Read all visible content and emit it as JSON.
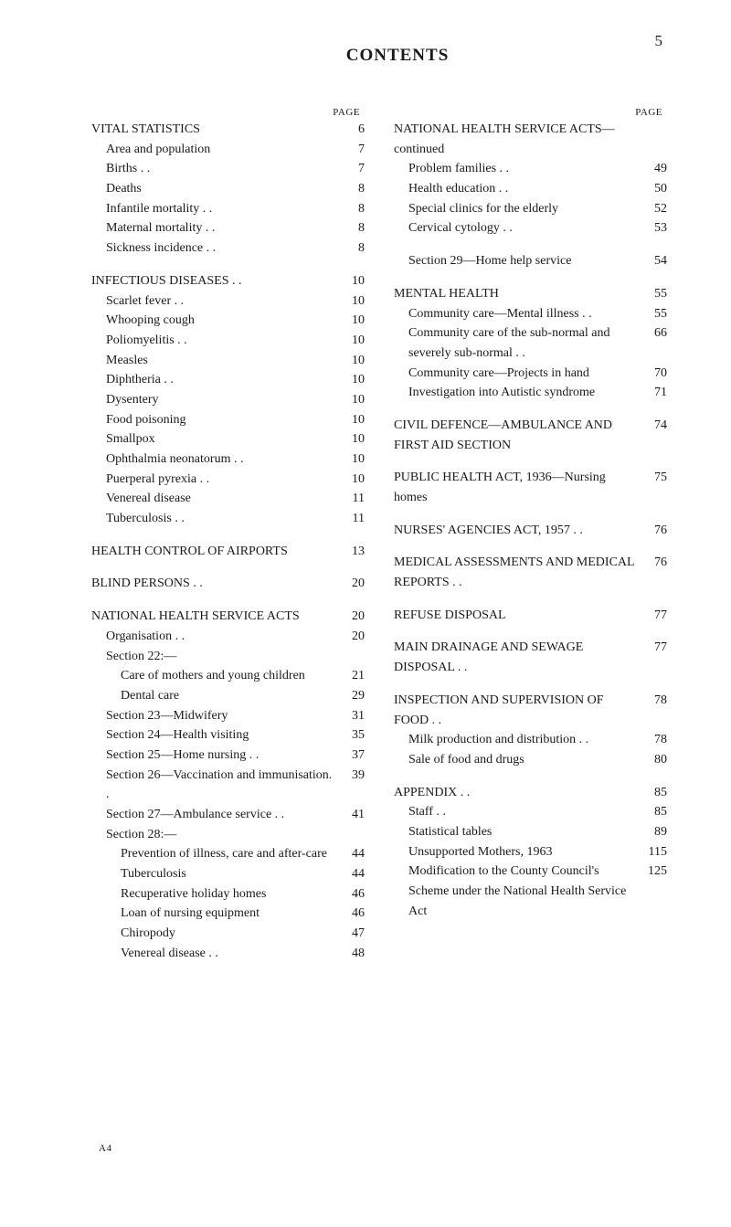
{
  "page_number": "5",
  "title": "CONTENTS",
  "page_header_label": "PAGE",
  "signature": "A4",
  "left_column": [
    {
      "type": "entry",
      "level": 0,
      "label": "VITAL STATISTICS",
      "page": "6"
    },
    {
      "type": "entry",
      "level": 1,
      "label": "Area and population",
      "page": "7"
    },
    {
      "type": "entry",
      "level": 1,
      "label": "Births . .",
      "page": "7"
    },
    {
      "type": "entry",
      "level": 1,
      "label": "Deaths",
      "page": "8"
    },
    {
      "type": "entry",
      "level": 1,
      "label": "Infantile mortality . .",
      "page": "8"
    },
    {
      "type": "entry",
      "level": 1,
      "label": "Maternal mortality . .",
      "page": "8"
    },
    {
      "type": "entry",
      "level": 1,
      "label": "Sickness incidence . .",
      "page": "8"
    },
    {
      "type": "gap"
    },
    {
      "type": "entry",
      "level": 0,
      "label": "INFECTIOUS DISEASES . .",
      "page": "10"
    },
    {
      "type": "entry",
      "level": 1,
      "label": "Scarlet fever . .",
      "page": "10"
    },
    {
      "type": "entry",
      "level": 1,
      "label": "Whooping cough",
      "page": "10"
    },
    {
      "type": "entry",
      "level": 1,
      "label": "Poliomyelitis . .",
      "page": "10"
    },
    {
      "type": "entry",
      "level": 1,
      "label": "Measles",
      "page": "10"
    },
    {
      "type": "entry",
      "level": 1,
      "label": "Diphtheria . .",
      "page": "10"
    },
    {
      "type": "entry",
      "level": 1,
      "label": "Dysentery",
      "page": "10"
    },
    {
      "type": "entry",
      "level": 1,
      "label": "Food poisoning",
      "page": "10"
    },
    {
      "type": "entry",
      "level": 1,
      "label": "Smallpox",
      "page": "10"
    },
    {
      "type": "entry",
      "level": 1,
      "label": "Ophthalmia neonatorum . .",
      "page": "10"
    },
    {
      "type": "entry",
      "level": 1,
      "label": "Puerperal pyrexia . .",
      "page": "10"
    },
    {
      "type": "entry",
      "level": 1,
      "label": "Venereal disease",
      "page": "11"
    },
    {
      "type": "entry",
      "level": 1,
      "label": "Tuberculosis . .",
      "page": "11"
    },
    {
      "type": "gap"
    },
    {
      "type": "entry",
      "level": 0,
      "label": "HEALTH CONTROL OF AIRPORTS",
      "page": "13"
    },
    {
      "type": "gap"
    },
    {
      "type": "entry",
      "level": 0,
      "label": "BLIND PERSONS . .",
      "page": "20"
    },
    {
      "type": "gap"
    },
    {
      "type": "entry",
      "level": 0,
      "label": "NATIONAL HEALTH SERVICE ACTS",
      "page": "20"
    },
    {
      "type": "entry",
      "level": 1,
      "label": "Organisation . .",
      "page": "20"
    },
    {
      "type": "entry",
      "level": 1,
      "label": "Section 22:—",
      "page": ""
    },
    {
      "type": "entry",
      "level": 2,
      "label": "Care of mothers and young children",
      "page": "21"
    },
    {
      "type": "entry",
      "level": 2,
      "label": "Dental care",
      "page": "29"
    },
    {
      "type": "entry",
      "level": 1,
      "label": "Section 23—Midwifery",
      "page": "31"
    },
    {
      "type": "entry",
      "level": 1,
      "label": "Section 24—Health visiting",
      "page": "35"
    },
    {
      "type": "entry",
      "level": 1,
      "label": "Section 25—Home nursing . .",
      "page": "37"
    },
    {
      "type": "entry",
      "level": 1,
      "label": "Section 26—Vaccination and im­munisation. .",
      "page": "39"
    },
    {
      "type": "entry",
      "level": 1,
      "label": "Section 27—Ambulance service . .",
      "page": "41"
    },
    {
      "type": "entry",
      "level": 1,
      "label": "Section 28:—",
      "page": ""
    },
    {
      "type": "entry",
      "level": 2,
      "label": "Prevention of illness, care and after-care",
      "page": "44"
    },
    {
      "type": "entry",
      "level": 2,
      "label": "Tuberculosis",
      "page": "44"
    },
    {
      "type": "entry",
      "level": 2,
      "label": "Recuperative holiday homes",
      "page": "46"
    },
    {
      "type": "entry",
      "level": 2,
      "label": "Loan of nursing equipment",
      "page": "46"
    },
    {
      "type": "entry",
      "level": 2,
      "label": "Chiropody",
      "page": "47"
    },
    {
      "type": "entry",
      "level": 2,
      "label": "Venereal disease . .",
      "page": "48"
    }
  ],
  "right_column": [
    {
      "type": "entry",
      "level": 0,
      "label": "NATIONAL HEALTH SERVICE ACTS—continued",
      "page": ""
    },
    {
      "type": "entry",
      "level": 1,
      "label": "Problem families . .",
      "page": "49"
    },
    {
      "type": "entry",
      "level": 1,
      "label": "Health education . .",
      "page": "50"
    },
    {
      "type": "entry",
      "level": 1,
      "label": "Special clinics for the elderly",
      "page": "52"
    },
    {
      "type": "entry",
      "level": 1,
      "label": "Cervical cytology . .",
      "page": "53"
    },
    {
      "type": "gap"
    },
    {
      "type": "entry",
      "level": 1,
      "label": "Section 29—Home help service",
      "page": "54"
    },
    {
      "type": "gap"
    },
    {
      "type": "entry",
      "level": 0,
      "label": "MENTAL HEALTH",
      "page": "55"
    },
    {
      "type": "entry",
      "level": 1,
      "label": "Community care—Mental illness . .",
      "page": "55"
    },
    {
      "type": "entry",
      "level": 1,
      "label": "Community care of the sub-normal and severely sub-normal . .",
      "page": "66"
    },
    {
      "type": "entry",
      "level": 1,
      "label": "Community care—Projects in hand",
      "page": "70"
    },
    {
      "type": "entry",
      "level": 1,
      "label": "Investigation into Autistic syndrome",
      "page": "71"
    },
    {
      "type": "gap"
    },
    {
      "type": "entry",
      "level": 0,
      "label": "CIVIL DEFENCE—AMBULANCE AND FIRST AID SECTION",
      "page": "74"
    },
    {
      "type": "gap"
    },
    {
      "type": "entry",
      "level": 0,
      "label": "PUBLIC HEALTH ACT, 1936—Nursing homes",
      "page": "75"
    },
    {
      "type": "gap"
    },
    {
      "type": "entry",
      "level": 0,
      "label": "NURSES' AGENCIES ACT, 1957 . .",
      "page": "76"
    },
    {
      "type": "gap"
    },
    {
      "type": "entry",
      "level": 0,
      "label": "MEDICAL ASSESSMENTS AND MEDICAL REPORTS . .",
      "page": "76"
    },
    {
      "type": "gap"
    },
    {
      "type": "entry",
      "level": 0,
      "label": "REFUSE DISPOSAL",
      "page": "77"
    },
    {
      "type": "gap"
    },
    {
      "type": "entry",
      "level": 0,
      "label": "MAIN DRAINAGE AND SEWAGE DISPOSAL . .",
      "page": "77"
    },
    {
      "type": "gap"
    },
    {
      "type": "entry",
      "level": 0,
      "label": "INSPECTION AND SUPERVISION OF FOOD . .",
      "page": "78"
    },
    {
      "type": "entry",
      "level": 1,
      "label": "Milk production and distribution . .",
      "page": "78"
    },
    {
      "type": "entry",
      "level": 1,
      "label": "Sale of food and drugs",
      "page": "80"
    },
    {
      "type": "gap"
    },
    {
      "type": "entry",
      "level": 0,
      "label": "APPENDIX . .",
      "page": "85"
    },
    {
      "type": "entry",
      "level": 1,
      "label": "Staff . .",
      "page": "85"
    },
    {
      "type": "entry",
      "level": 1,
      "label": "Statistical tables",
      "page": "89"
    },
    {
      "type": "entry",
      "level": 1,
      "label": "Unsupported Mothers, 1963",
      "page": "115"
    },
    {
      "type": "entry",
      "level": 1,
      "label": "Modification to the County Council's Scheme under the National Health Service Act",
      "page": "125"
    }
  ]
}
